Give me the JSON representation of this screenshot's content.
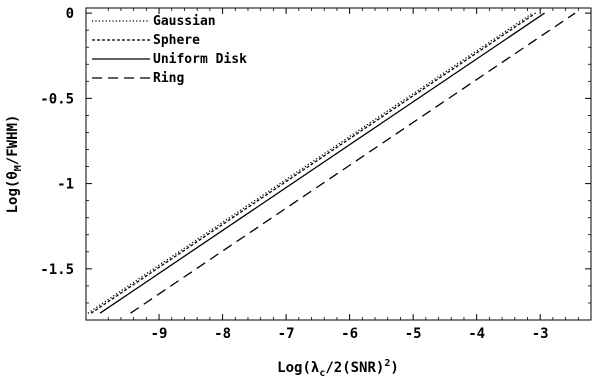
{
  "chart_data": {
    "type": "line",
    "title": "",
    "xlabel": "Log(λc/2(SNR)2)",
    "xlabel_parts": {
      "prefix": "Log(λ",
      "subscript": "c",
      "middle": "/2(SNR)",
      "superscript": "2",
      "suffix": ")"
    },
    "ylabel": "Log(θM/FWHM)",
    "ylabel_parts": {
      "prefix": "Log(θ",
      "subscript": "M",
      "suffix": "/FWHM)"
    },
    "xlim": [
      -10.15,
      -2.2
    ],
    "ylim": [
      -1.8,
      0.03
    ],
    "xticks": [
      -9,
      -8,
      -7,
      -6,
      -5,
      -4,
      -3
    ],
    "xtick_labels": [
      "-9",
      "-8",
      "-7",
      "-6",
      "-5",
      "-4",
      "-3"
    ],
    "yticks": [
      0,
      -0.5,
      -1,
      -1.5
    ],
    "ytick_labels": [
      "0",
      "-0.5",
      "-1",
      "-1.5"
    ],
    "grid": false,
    "legend_position": "top-left",
    "series": [
      {
        "name": "Gaussian",
        "dash": "dotted",
        "x": [
          -10.12,
          -3.12
        ],
        "y": [
          -1.76,
          0.0
        ]
      },
      {
        "name": "Sphere",
        "dash": "short-dash",
        "x": [
          -10.07,
          -3.07
        ],
        "y": [
          -1.76,
          0.0
        ]
      },
      {
        "name": "Uniform Disk",
        "dash": "solid",
        "x": [
          -9.93,
          -2.93
        ],
        "y": [
          -1.76,
          0.0
        ]
      },
      {
        "name": "Ring",
        "dash": "long-dash",
        "x": [
          -9.45,
          -2.45
        ],
        "y": [
          -1.76,
          0.0
        ]
      }
    ]
  }
}
